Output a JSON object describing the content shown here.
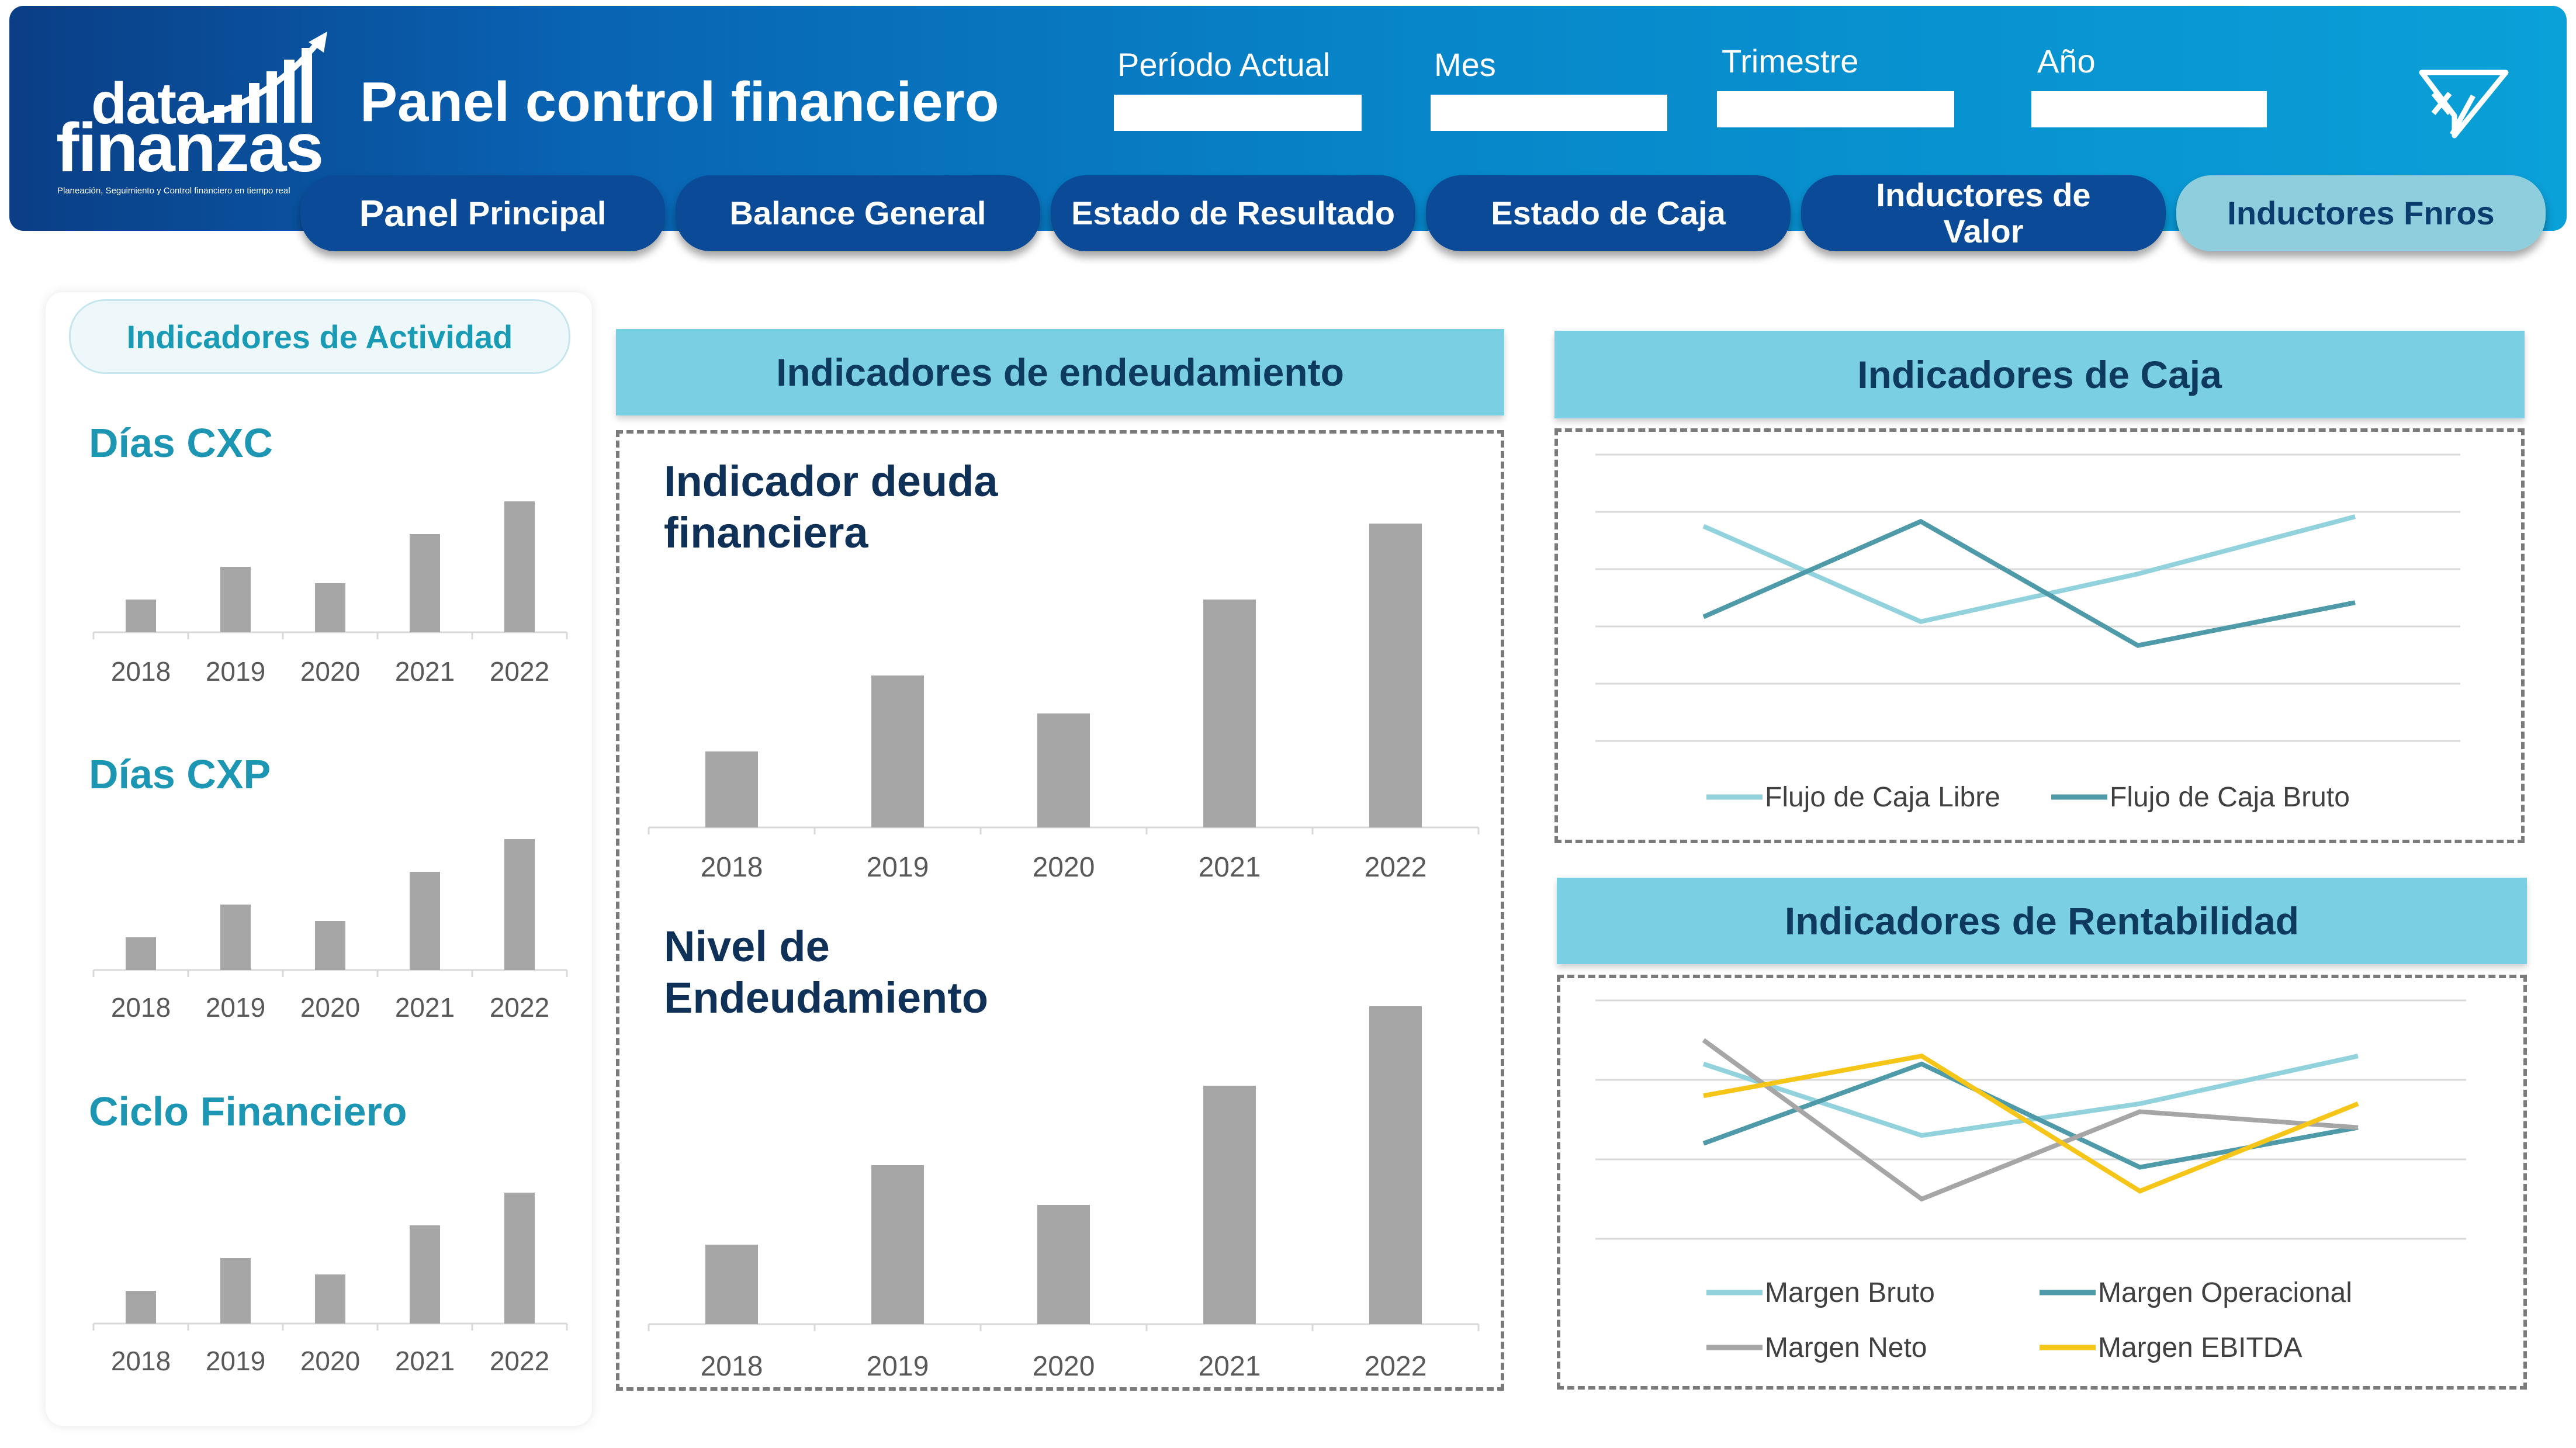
{
  "header": {
    "logo": {
      "word1": "data",
      "word2": "finanzas",
      "tagline": "Planeación, Seguimiento y Control financiero en tiempo real"
    },
    "title": "Panel control financiero",
    "filters": [
      {
        "label": "Período Actual",
        "value": ""
      },
      {
        "label": "Mes",
        "value": ""
      },
      {
        "label": "Trimestre",
        "value": ""
      },
      {
        "label": "Año",
        "value": ""
      }
    ]
  },
  "tabs": [
    {
      "label_bold": "Panel",
      "label_rest": " Principal",
      "active": false
    },
    {
      "label": "Balance General",
      "active": false
    },
    {
      "label": "Estado de Resultado",
      "active": false
    },
    {
      "label": "Estado de Caja",
      "active": false
    },
    {
      "label": "Inductores de Valor",
      "active": false
    },
    {
      "label": "Inductores Fnros",
      "active": true
    }
  ],
  "activity": {
    "pill": "Indicadores de Actividad",
    "charts": [
      {
        "title": "Días CXC"
      },
      {
        "title": "Días CXP"
      },
      {
        "title": "Ciclo Financiero"
      }
    ]
  },
  "debt": {
    "header": "Indicadores de endeudamiento",
    "charts": [
      {
        "title_line1": "Indicador deuda",
        "title_line2": "financiera"
      },
      {
        "title_line1": "Nivel de",
        "title_line2": "Endeudamiento"
      }
    ]
  },
  "cash": {
    "header": "Indicadores de Caja"
  },
  "profit": {
    "header": "Indicadores de Rentabilidad"
  },
  "colors": {
    "bar": "#a6a6a6",
    "light_teal": "#92d2dc",
    "dark_teal": "#4e9aa8",
    "gray": "#a6a6a6",
    "yellow": "#f5c518"
  },
  "chart_data": [
    {
      "id": "dias-cxc",
      "type": "bar",
      "title": "Días CXC",
      "categories": [
        "2018",
        "2019",
        "2020",
        "2021",
        "2022"
      ],
      "values": [
        20,
        40,
        30,
        60,
        80
      ],
      "ylim": [
        0,
        100
      ]
    },
    {
      "id": "dias-cxp",
      "type": "bar",
      "title": "Días CXP",
      "categories": [
        "2018",
        "2019",
        "2020",
        "2021",
        "2022"
      ],
      "values": [
        20,
        40,
        30,
        60,
        80
      ],
      "ylim": [
        0,
        100
      ]
    },
    {
      "id": "ciclo-financiero",
      "type": "bar",
      "title": "Ciclo Financiero",
      "categories": [
        "2018",
        "2019",
        "2020",
        "2021",
        "2022"
      ],
      "values": [
        20,
        40,
        30,
        60,
        80
      ],
      "ylim": [
        0,
        100
      ]
    },
    {
      "id": "deuda-financiera",
      "type": "bar",
      "title": "Indicador deuda financiera",
      "categories": [
        "2018",
        "2019",
        "2020",
        "2021",
        "2022"
      ],
      "values": [
        20,
        40,
        30,
        60,
        80
      ],
      "ylim": [
        0,
        100
      ]
    },
    {
      "id": "nivel-endeudamiento",
      "type": "bar",
      "title": "Nivel de Endeudamiento",
      "categories": [
        "2018",
        "2019",
        "2020",
        "2021",
        "2022"
      ],
      "values": [
        20,
        40,
        30,
        60,
        80
      ],
      "ylim": [
        0,
        100
      ]
    },
    {
      "id": "caja",
      "type": "line",
      "title": "Indicadores de Caja",
      "x": [
        1,
        2,
        3,
        4
      ],
      "ylim": [
        0,
        6
      ],
      "grid": true,
      "legend": "bottom",
      "series": [
        {
          "name": "Flujo de Caja Libre",
          "color": "#92d2dc",
          "values": [
            4.5,
            2.5,
            3.5,
            4.7
          ]
        },
        {
          "name": "Flujo de Caja Bruto",
          "color": "#4e9aa8",
          "values": [
            2.6,
            4.6,
            2.0,
            2.9
          ]
        }
      ]
    },
    {
      "id": "rentabilidad",
      "type": "line",
      "title": "Indicadores de Rentabilidad",
      "x": [
        1,
        2,
        3,
        4
      ],
      "ylim": [
        0,
        3
      ],
      "grid": true,
      "legend": "bottom",
      "series": [
        {
          "name": "Margen Bruto",
          "color": "#92d2dc",
          "values": [
            2.2,
            1.3,
            1.7,
            2.3
          ]
        },
        {
          "name": "Margen Operacional",
          "color": "#4e9aa8",
          "values": [
            1.2,
            2.2,
            0.9,
            1.4
          ]
        },
        {
          "name": "Margen Neto",
          "color": "#a6a6a6",
          "values": [
            2.5,
            0.5,
            1.6,
            1.4
          ]
        },
        {
          "name": "Margen EBITDA",
          "color": "#f5c518",
          "values": [
            1.8,
            2.3,
            0.6,
            1.7
          ]
        }
      ]
    }
  ]
}
